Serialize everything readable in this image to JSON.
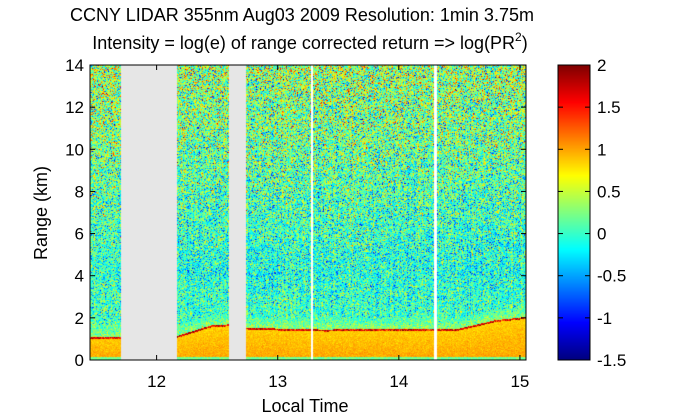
{
  "chart_data": {
    "type": "heatmap",
    "title_line1": "CCNY LIDAR 355nm Aug03 2009 Resolution: 1min 3.75m",
    "title_line2_prefix": "Intensity = log(e) of range corrected return => log(PR",
    "title_line2_sup": "2",
    "title_line2_suffix": ")",
    "xlabel": "Local Time",
    "ylabel": "Range (km)",
    "xlim": [
      11.45,
      15.05
    ],
    "ylim": [
      0,
      14
    ],
    "x_ticks": [
      12,
      13,
      14,
      15
    ],
    "x_tick_labels": [
      "12",
      "13",
      "14",
      "15"
    ],
    "y_ticks": [
      0,
      2,
      4,
      6,
      8,
      10,
      12,
      14
    ],
    "y_tick_labels": [
      "0",
      "2",
      "4",
      "6",
      "8",
      "10",
      "12",
      "14"
    ],
    "colorbar": {
      "colormap": "jet",
      "clim": [
        -1.5,
        2
      ],
      "ticks": [
        -1.5,
        -1,
        -0.5,
        0,
        0.5,
        1,
        1.5,
        2
      ],
      "tick_labels": [
        "-1.5",
        "-1",
        "-0.5",
        "0",
        "0.5",
        "1",
        "1.5",
        "2"
      ]
    },
    "data_gaps": [
      {
        "x_start": 11.71,
        "x_end": 12.17
      },
      {
        "x_start": 12.6,
        "x_end": 12.74
      }
    ],
    "missing_data_color": "#e6e6e6",
    "thin_gaps": [
      13.28,
      14.3
    ],
    "aerosol_layer_top_km": [
      {
        "x": 11.45,
        "top": 1.0
      },
      {
        "x": 12.17,
        "top": 1.05
      },
      {
        "x": 12.45,
        "top": 1.55
      },
      {
        "x": 12.6,
        "top": 1.6
      },
      {
        "x": 12.74,
        "top": 1.45
      },
      {
        "x": 13.0,
        "top": 1.4
      },
      {
        "x": 13.4,
        "top": 1.35
      },
      {
        "x": 13.8,
        "top": 1.4
      },
      {
        "x": 14.2,
        "top": 1.4
      },
      {
        "x": 14.5,
        "top": 1.4
      },
      {
        "x": 14.8,
        "top": 1.8
      },
      {
        "x": 15.05,
        "top": 1.95
      }
    ]
  }
}
